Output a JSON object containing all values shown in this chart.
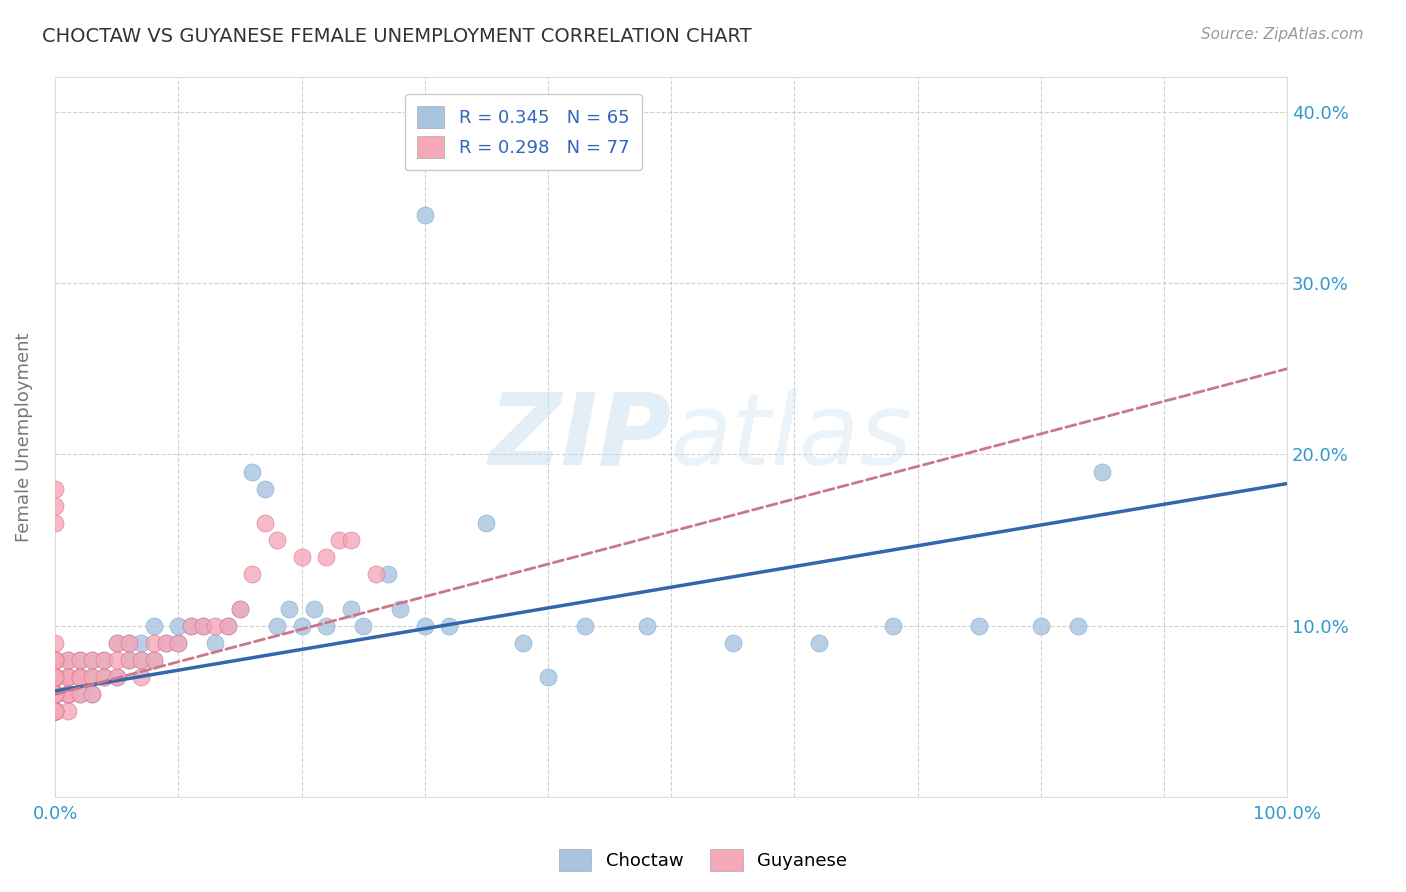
{
  "title": "CHOCTAW VS GUYANESE FEMALE UNEMPLOYMENT CORRELATION CHART",
  "source": "Source: ZipAtlas.com",
  "ylabel": "Female Unemployment",
  "xlim": [
    0.0,
    1.0
  ],
  "ylim": [
    0.0,
    0.42
  ],
  "xticks": [
    0.0,
    0.1,
    0.2,
    0.3,
    0.4,
    0.5,
    0.6,
    0.7,
    0.8,
    0.9,
    1.0
  ],
  "yticks": [
    0.0,
    0.1,
    0.2,
    0.3,
    0.4
  ],
  "choctaw_color": "#a8c4e0",
  "choctaw_edge_color": "#7aaad0",
  "guyanese_color": "#f4a8b8",
  "guyanese_edge_color": "#e07090",
  "choctaw_line_color": "#3366aa",
  "guyanese_line_color": "#cc7788",
  "watermark_zip": "ZIP",
  "watermark_atlas": "atlas",
  "background_color": "#ffffff",
  "grid_color": "#cccccc",
  "choctaw_x": [
    0.0,
    0.0,
    0.0,
    0.0,
    0.0,
    0.0,
    0.0,
    0.0,
    0.0,
    0.0,
    0.01,
    0.01,
    0.01,
    0.01,
    0.02,
    0.02,
    0.02,
    0.02,
    0.03,
    0.03,
    0.03,
    0.04,
    0.04,
    0.05,
    0.05,
    0.06,
    0.06,
    0.07,
    0.07,
    0.08,
    0.08,
    0.09,
    0.1,
    0.1,
    0.11,
    0.12,
    0.13,
    0.14,
    0.15,
    0.16,
    0.17,
    0.18,
    0.19,
    0.2,
    0.21,
    0.22,
    0.24,
    0.25,
    0.27,
    0.28,
    0.3,
    0.32,
    0.35,
    0.38,
    0.4,
    0.43,
    0.48,
    0.55,
    0.62,
    0.68,
    0.75,
    0.8,
    0.83,
    0.85,
    0.3
  ],
  "choctaw_y": [
    0.05,
    0.06,
    0.07,
    0.05,
    0.06,
    0.07,
    0.08,
    0.05,
    0.06,
    0.07,
    0.06,
    0.07,
    0.08,
    0.06,
    0.07,
    0.08,
    0.06,
    0.07,
    0.07,
    0.08,
    0.06,
    0.07,
    0.08,
    0.07,
    0.09,
    0.08,
    0.09,
    0.08,
    0.09,
    0.08,
    0.1,
    0.09,
    0.09,
    0.1,
    0.1,
    0.1,
    0.09,
    0.1,
    0.11,
    0.19,
    0.18,
    0.1,
    0.11,
    0.1,
    0.11,
    0.1,
    0.11,
    0.1,
    0.13,
    0.11,
    0.1,
    0.1,
    0.16,
    0.09,
    0.07,
    0.1,
    0.1,
    0.09,
    0.09,
    0.1,
    0.1,
    0.1,
    0.1,
    0.19,
    0.34
  ],
  "guyanese_x": [
    0.0,
    0.0,
    0.0,
    0.0,
    0.0,
    0.0,
    0.0,
    0.0,
    0.0,
    0.0,
    0.0,
    0.0,
    0.0,
    0.0,
    0.0,
    0.0,
    0.0,
    0.0,
    0.0,
    0.0,
    0.0,
    0.0,
    0.0,
    0.0,
    0.0,
    0.01,
    0.01,
    0.01,
    0.01,
    0.01,
    0.01,
    0.01,
    0.02,
    0.02,
    0.02,
    0.02,
    0.03,
    0.03,
    0.03,
    0.04,
    0.04,
    0.05,
    0.05,
    0.05,
    0.06,
    0.06,
    0.07,
    0.07,
    0.08,
    0.08,
    0.09,
    0.1,
    0.11,
    0.12,
    0.13,
    0.14,
    0.15,
    0.16,
    0.17,
    0.18,
    0.2,
    0.22,
    0.23,
    0.24,
    0.26,
    0.0,
    0.0,
    0.0,
    0.0,
    0.0,
    0.0,
    0.0,
    0.0,
    0.0,
    0.0,
    0.0,
    0.0
  ],
  "guyanese_y": [
    0.05,
    0.06,
    0.07,
    0.08,
    0.05,
    0.06,
    0.07,
    0.05,
    0.06,
    0.07,
    0.08,
    0.05,
    0.06,
    0.07,
    0.05,
    0.06,
    0.07,
    0.08,
    0.05,
    0.06,
    0.07,
    0.05,
    0.06,
    0.07,
    0.08,
    0.06,
    0.07,
    0.08,
    0.06,
    0.07,
    0.05,
    0.06,
    0.06,
    0.07,
    0.08,
    0.07,
    0.07,
    0.08,
    0.06,
    0.07,
    0.08,
    0.07,
    0.08,
    0.09,
    0.08,
    0.09,
    0.07,
    0.08,
    0.08,
    0.09,
    0.09,
    0.09,
    0.1,
    0.1,
    0.1,
    0.1,
    0.11,
    0.13,
    0.16,
    0.15,
    0.14,
    0.14,
    0.15,
    0.15,
    0.13,
    0.17,
    0.16,
    0.18,
    0.05,
    0.06,
    0.07,
    0.08,
    0.09,
    0.05,
    0.06,
    0.07,
    0.08
  ],
  "choctaw_line_x0": 0.0,
  "choctaw_line_y0": 0.062,
  "choctaw_line_x1": 1.0,
  "choctaw_line_y1": 0.183,
  "guyanese_line_x0": 0.0,
  "guyanese_line_y0": 0.06,
  "guyanese_line_x1": 1.0,
  "guyanese_line_y1": 0.25
}
